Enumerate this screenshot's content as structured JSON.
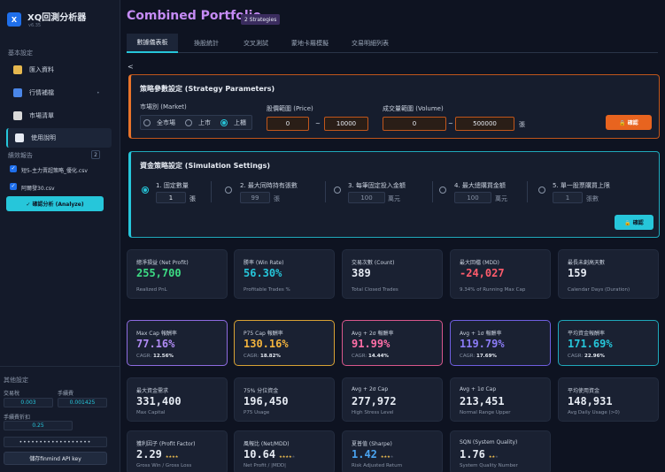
{
  "app": {
    "logo": "X",
    "title": "XQ回測分析器",
    "version": "v6.35"
  },
  "sidebar": {
    "basic_label": "基本設定",
    "items": [
      {
        "label": "匯入資料",
        "icon": "folder-icon",
        "color": "#e6b84f"
      },
      {
        "label": "行情補檔",
        "icon": "calendar-icon",
        "color": "#4a86e8"
      },
      {
        "label": "市場清單",
        "icon": "clipboard-icon",
        "color": "#d9d9d9"
      },
      {
        "label": "使用說明",
        "icon": "book-icon",
        "color": "#e6ebf3"
      }
    ],
    "report_label": "績效報告",
    "report_count": "2",
    "reports": [
      "短5-主力賣超策略_優化.csv",
      "阿爾發30.csv"
    ],
    "analyze_label": "✓ 確認分析 (Analyze)",
    "other_label": "其他設定",
    "tax_label": "交易稅",
    "tax_value": "0.003",
    "fee_label": "手續費",
    "fee_value": "0.001425",
    "discount_label": "手續費折扣",
    "discount_value": "0.25",
    "api_masked": "••••••••••••••••••",
    "api_button": "儲存finmind API key"
  },
  "header": {
    "title": "Combined Portfolio",
    "badge": "2 Strategies"
  },
  "tabs": [
    "數據儀表板",
    "換股統計",
    "交叉測試",
    "蒙地卡羅模擬",
    "交易明細列表"
  ],
  "back": "<",
  "strategy": {
    "title": "策略參數設定 (Strategy Parameters)",
    "market_label": "市場別 (Market)",
    "markets": [
      "全市場",
      "上市",
      "上櫃"
    ],
    "price_label": "股價範圍 (Price)",
    "price_min": "0",
    "price_max": "10000",
    "volume_label": "成交量範圍 (Volume)",
    "vol_min": "0",
    "vol_max": "500000",
    "vol_unit": "張",
    "dash": "~",
    "confirm": "🔒 確認"
  },
  "simulation": {
    "title": "資金策略設定 (Simulation Settings)",
    "options": [
      {
        "label": "1. 固定數量",
        "value": "1",
        "unit": "張"
      },
      {
        "label": "2. 最大同時持有張數",
        "value": "99",
        "unit": "張"
      },
      {
        "label": "3. 每筆固定投入金額",
        "value": "100",
        "unit": "萬元"
      },
      {
        "label": "4. 最大總購買金額",
        "value": "100",
        "unit": "萬元"
      },
      {
        "label": "5. 單一股票購買上限",
        "value": "1",
        "unit": "張數"
      }
    ],
    "confirm": "🔒 確認"
  },
  "row1": [
    {
      "label": "總淨損益 (Net Profit)",
      "value": "255,700",
      "sub": "Realized PnL",
      "color": "#3ddc84"
    },
    {
      "label": "勝率 (Win Rate)",
      "value": "56.30%",
      "sub": "Profitable Trades %",
      "color": "#26c6da"
    },
    {
      "label": "交易次數 (Count)",
      "value": "389",
      "sub": "Total Closed Trades",
      "color": "#e6ebf3"
    },
    {
      "label": "最大回檔 (MDD)",
      "value": "-24,027",
      "sub": "9.34% of Running Max Cap",
      "color": "#ff5c6c"
    },
    {
      "label": "最長未創高天數",
      "value": "159",
      "sub": "Calendar Days (Duration)",
      "color": "#e6ebf3"
    }
  ],
  "row2": [
    {
      "label": "Max Cap 報酬率",
      "value": "77.16%",
      "cagr": "12.56%",
      "color": "#b18cf5",
      "border": "#8e6be0"
    },
    {
      "label": "P75 Cap 報酬率",
      "value": "130.16%",
      "cagr": "18.82%",
      "color": "#f2b33d",
      "border": "#d8a234"
    },
    {
      "label": "Avg + 2σ 報酬率",
      "value": "91.99%",
      "cagr": "14.44%",
      "color": "#ff6fa8",
      "border": "#d9578c"
    },
    {
      "label": "Avg + 1σ 報酬率",
      "value": "119.79%",
      "cagr": "17.69%",
      "color": "#8b7cf6",
      "border": "#6f5fe0"
    },
    {
      "label": "平均資金報酬率",
      "value": "171.69%",
      "cagr": "22.96%",
      "color": "#26c6da",
      "border": "#1fa9bb"
    }
  ],
  "cagr_label": "CAGR:",
  "row3": [
    {
      "label": "最大資金需求",
      "value": "331,400",
      "sub": "Max Capital"
    },
    {
      "label": "75% 分位資金",
      "value": "196,450",
      "sub": "P75 Usage"
    },
    {
      "label": "Avg + 2σ Cap",
      "value": "277,972",
      "sub": "High Stress Level"
    },
    {
      "label": "Avg + 1σ Cap",
      "value": "213,451",
      "sub": "Normal Range Upper"
    },
    {
      "label": "平均使用資金",
      "value": "148,931",
      "sub": "Avg Daily Usage (>0)"
    }
  ],
  "row4": [
    {
      "label": "獲利因子 (Profit Factor)",
      "value": "2.29",
      "stars_on": "★★★★",
      "stars_off": "",
      "sub": "Gross Win / Gross Loss",
      "color": "#e6ebf3"
    },
    {
      "label": "風報比 (Net/MDD)",
      "value": "10.64",
      "stars_on": "★★★★",
      "stars_off": "★",
      "sub": "Net Profit / |MDD|",
      "color": "#e6ebf3"
    },
    {
      "label": "夏普值 (Sharpe)",
      "value": "1.42",
      "stars_on": "★★★",
      "stars_off": "★",
      "sub": "Risk Adjusted Return",
      "color": "#4aa3f0"
    },
    {
      "label": "SQN (System Quality)",
      "value": "1.76",
      "stars_on": "★★",
      "stars_off": "★",
      "sub": "System Quality Number",
      "color": "#e6ebf3"
    }
  ]
}
